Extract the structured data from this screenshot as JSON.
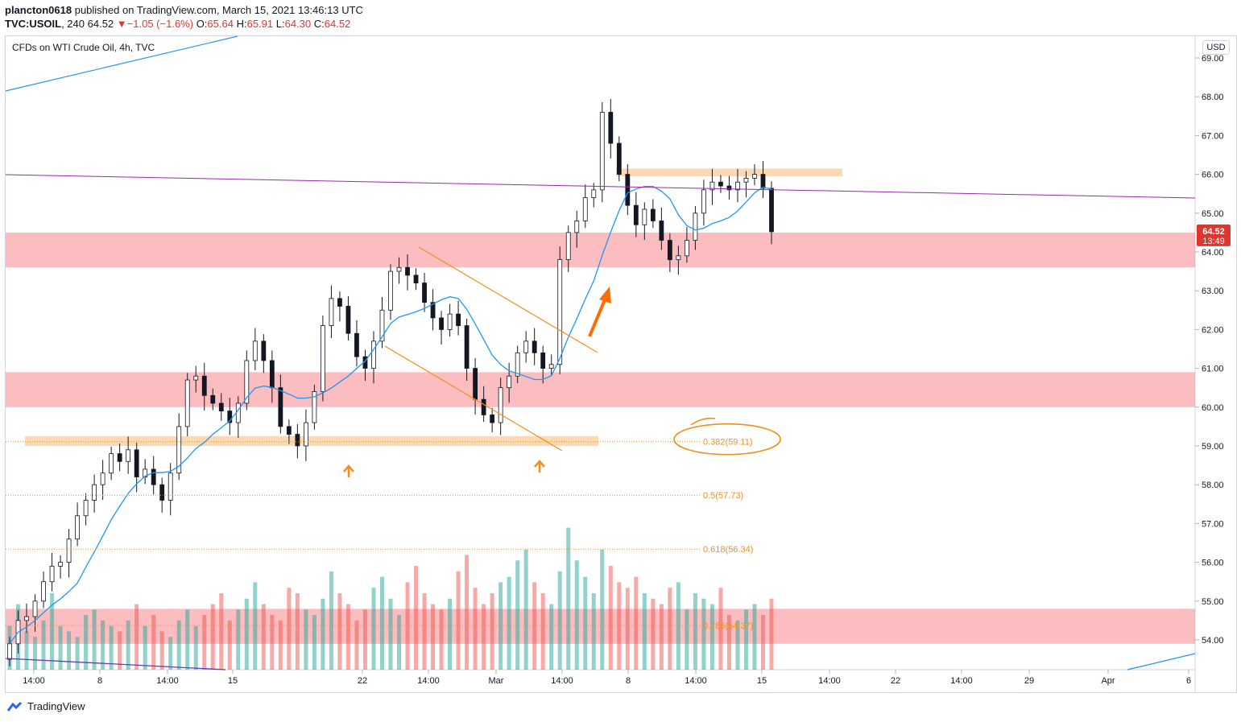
{
  "header": {
    "author": "plancton0618",
    "published": "published on TradingView.com, March 15, 2021 13:46:13 UTC",
    "symbol": "TVC:USOIL",
    "interval": "240",
    "last": "64.52",
    "change_arrow": "▼",
    "change": "−1.05 (−1.6%)",
    "o_label": "O:",
    "o": "65.64",
    "h_label": "H:",
    "h": "65.91",
    "l_label": "L:",
    "l": "64.30",
    "c_label": "C:",
    "c": "64.52"
  },
  "legend": "CFDs on WTI Crude Oil, 4h, TVC",
  "currency": "USD",
  "price_tag": {
    "value": "64.52",
    "countdown": "13:49"
  },
  "brand": "TradingView",
  "colors": {
    "up": "#26a69a",
    "down": "#ef5350",
    "ma": "#2196f3",
    "zone": "#f77c80",
    "fib": "#f28e1c",
    "tag": "#e0342f"
  },
  "chart_data": {
    "type": "candlestick",
    "title": "CFDs on WTI Crude Oil, 4h, TVC",
    "y_ticks": [
      "69.00",
      "68.00",
      "67.00",
      "66.00",
      "65.00",
      "64.00",
      "63.00",
      "62.00",
      "61.00",
      "60.00",
      "59.00",
      "58.00",
      "57.00",
      "56.00",
      "55.00",
      "54.00"
    ],
    "x_ticks": [
      "14:00",
      "8",
      "14:00",
      "15",
      "22",
      "14:00",
      "Mar",
      "14:00",
      "8",
      "14:00",
      "15",
      "14:00",
      "22",
      "14:00",
      "29",
      "Apr",
      "6"
    ],
    "ylim": [
      53.3,
      69.9
    ],
    "fib_levels": [
      {
        "label": "0.382(59.11)",
        "value": 59.11
      },
      {
        "label": "0.5(57.73)",
        "value": 57.73
      },
      {
        "label": "0.618(56.34)",
        "value": 56.34
      },
      {
        "label": "0.786(54.37)",
        "value": 54.37
      }
    ],
    "resistance_zones": [
      [
        63.6,
        64.5
      ],
      [
        60.0,
        60.9
      ],
      [
        53.9,
        54.8
      ]
    ],
    "supply_zones": [
      [
        59.0,
        59.25
      ],
      [
        65.95,
        66.15
      ]
    ],
    "close_path": [
      53.9,
      54.5,
      54.6,
      55.0,
      55.5,
      55.9,
      56.0,
      56.6,
      57.2,
      57.6,
      58.0,
      58.3,
      58.8,
      58.6,
      58.9,
      58.2,
      58.4,
      58.0,
      57.6,
      58.3,
      59.5,
      60.7,
      60.8,
      60.3,
      60.1,
      59.9,
      59.6,
      60.1,
      61.2,
      61.7,
      61.2,
      60.5,
      59.5,
      59.3,
      59.0,
      59.6,
      60.4,
      62.1,
      62.8,
      62.6,
      61.9,
      61.3,
      61.0,
      61.7,
      62.5,
      63.5,
      63.6,
      63.4,
      63.2,
      62.7,
      62.3,
      62.0,
      62.4,
      62.1,
      61.0,
      60.2,
      59.8,
      59.6,
      60.5,
      60.8,
      61.4,
      61.7,
      61.4,
      61.0,
      61.1,
      63.8,
      64.5,
      64.8,
      65.4,
      65.6,
      67.6,
      66.8,
      66.0,
      65.2,
      64.7,
      65.1,
      64.8,
      64.3,
      63.8,
      63.9,
      64.3,
      65.0,
      65.6,
      65.8,
      65.7,
      65.6,
      65.8,
      65.9,
      66.0,
      65.64,
      64.52
    ],
    "volume": [
      8,
      12,
      7,
      6,
      9,
      14,
      8,
      7,
      6,
      10,
      11,
      9,
      8,
      7,
      9,
      12,
      8,
      10,
      7,
      6,
      9,
      11,
      8,
      10,
      12,
      14,
      9,
      11,
      13,
      16,
      12,
      10,
      9,
      15,
      14,
      11,
      10,
      13,
      18,
      14,
      12,
      9,
      11,
      15,
      17,
      13,
      10,
      16,
      19,
      14,
      12,
      11,
      13,
      18,
      21,
      15,
      12,
      14,
      16,
      17,
      20,
      22,
      16,
      14,
      12,
      18,
      26,
      20,
      17,
      14,
      22,
      19,
      16,
      15,
      17,
      14,
      13,
      12,
      15,
      16,
      11,
      14,
      13,
      12,
      15,
      10,
      9,
      11,
      12,
      10,
      13
    ]
  }
}
